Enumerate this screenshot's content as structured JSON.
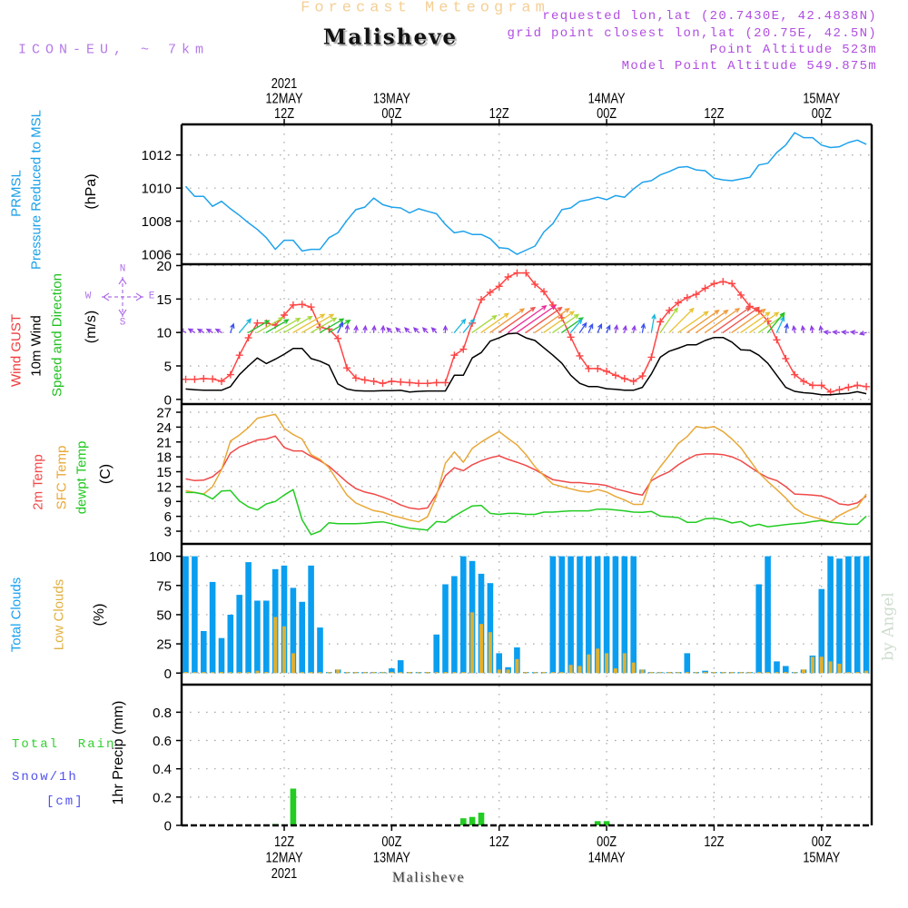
{
  "header": {
    "title": "Forecast Meteogram",
    "location": "Malisheve",
    "model": "ICON-EU, ~ 7km",
    "info": [
      "requested lon,lat (20.7430E, 42.4838N)",
      "grid point closest lon,lat (20.75E, 42.5N)",
      "Point Altitude 523m",
      "Model Point Altitude 549.875m"
    ]
  },
  "footer": {
    "location": "Malisheve",
    "credit": "by Angel"
  },
  "compass": {
    "north": "N",
    "south": "S",
    "east": "E",
    "west": "W",
    "color": "#b070e8"
  },
  "wind_arrow_colormap": [
    {
      "max": 1.6,
      "color": "#8e3ee6"
    },
    {
      "max": 2.5,
      "color": "#3a52f0"
    },
    {
      "max": 4.0,
      "color": "#1ab6dc"
    },
    {
      "max": 6.0,
      "color": "#22c02a"
    },
    {
      "max": 7.0,
      "color": "#a6d83a"
    },
    {
      "max": 8.0,
      "color": "#e8c232"
    },
    {
      "max": 9.0,
      "color": "#f09a3a"
    },
    {
      "max": 9.5,
      "color": "#f0504a"
    },
    {
      "max": 99,
      "color": "#ee2a96"
    }
  ],
  "time_axis": {
    "unit": "hours since 2021-05-12 00Z",
    "xlim": [
      0.54,
      77.6
    ],
    "hours": [
      1,
      2,
      3,
      4,
      5,
      6,
      7,
      8,
      9,
      10,
      11,
      12,
      13,
      14,
      15,
      16,
      17,
      18,
      19,
      20,
      21,
      22,
      23,
      24,
      25,
      26,
      27,
      28,
      29,
      30,
      31,
      32,
      33,
      34,
      35,
      36,
      37,
      38,
      39,
      40,
      41,
      42,
      43,
      44,
      45,
      46,
      47,
      48,
      49,
      50,
      51,
      52,
      53,
      54,
      55,
      56,
      57,
      58,
      59,
      60,
      61,
      62,
      63,
      64,
      65,
      66,
      67,
      68,
      69,
      70,
      71,
      72,
      73,
      74,
      75,
      76,
      77
    ],
    "ticks": [
      {
        "hour": 12,
        "top": [
          "2021",
          "12MAY",
          "12Z"
        ],
        "bottom": [
          "12Z",
          "12MAY",
          "2021"
        ]
      },
      {
        "hour": 24,
        "top": [
          "13MAY",
          "00Z"
        ],
        "bottom": [
          "00Z",
          "13MAY"
        ]
      },
      {
        "hour": 36,
        "top": [
          "12Z"
        ],
        "bottom": [
          "12Z"
        ]
      },
      {
        "hour": 48,
        "top": [
          "14MAY",
          "00Z"
        ],
        "bottom": [
          "00Z",
          "14MAY"
        ]
      },
      {
        "hour": 60,
        "top": [
          "12Z"
        ],
        "bottom": [
          "12Z"
        ]
      },
      {
        "hour": 72,
        "top": [
          "15MAY",
          "00Z"
        ],
        "bottom": [
          "00Z",
          "15MAY"
        ]
      }
    ]
  },
  "chart_data": [
    {
      "id": "pressure",
      "type": "line",
      "ylabel": "(hPa)",
      "ylim": [
        1005.4,
        1013.85
      ],
      "yticks": [
        1006,
        1008,
        1010,
        1012
      ],
      "grid": true,
      "labels": [
        {
          "text": "PRMSL",
          "color": "#1aa0e8"
        },
        {
          "text": "Pressure Reduced to MSL",
          "color": "#1aa0e8"
        }
      ],
      "series": [
        {
          "name": "PRMSL",
          "color": "#1ea2ec",
          "values": [
            1010.1,
            1009.5,
            1009.5,
            1008.9,
            1009.2,
            1008.75,
            1008.35,
            1007.9,
            1007.5,
            1007.0,
            1006.3,
            1006.85,
            1006.85,
            1006.2,
            1006.3,
            1006.3,
            1007.0,
            1007.3,
            1008.05,
            1008.7,
            1008.85,
            1009.4,
            1009.0,
            1008.85,
            1008.8,
            1008.5,
            1008.75,
            1008.6,
            1008.45,
            1007.8,
            1007.3,
            1007.4,
            1007.2,
            1007.2,
            1006.95,
            1006.4,
            1006.35,
            1006.0,
            1006.25,
            1006.5,
            1007.35,
            1007.85,
            1008.7,
            1008.8,
            1009.2,
            1009.3,
            1009.45,
            1009.3,
            1009.55,
            1009.45,
            1009.95,
            1010.35,
            1010.45,
            1010.8,
            1011.0,
            1011.25,
            1011.3,
            1011.1,
            1011.05,
            1010.6,
            1010.5,
            1010.45,
            1010.55,
            1010.65,
            1011.4,
            1011.5,
            1012.15,
            1012.6,
            1013.35,
            1013.05,
            1013.05,
            1012.6,
            1012.45,
            1012.5,
            1012.75,
            1012.9,
            1012.65
          ]
        }
      ]
    },
    {
      "id": "wind",
      "type": "line",
      "ylabel": "(m/s)",
      "ylim": [
        -0.7,
        20.2
      ],
      "yticks": [
        0,
        5,
        10,
        15,
        20
      ],
      "grid": true,
      "labels": [
        {
          "text": "Wind GUST",
          "color": "#f03c3c"
        },
        {
          "text": "10m Wind",
          "color": "#000000"
        },
        {
          "text": "Speed and Direction",
          "color": "#1fc01f"
        }
      ],
      "series": [
        {
          "name": "Wind GUST",
          "color": "#ff4444",
          "marker": "+",
          "values": [
            3.0,
            3.0,
            3.1,
            3.05,
            2.7,
            3.7,
            6.6,
            9.2,
            11.4,
            11.4,
            11.1,
            12.6,
            14.1,
            14.2,
            13.8,
            10.8,
            10.5,
            9.1,
            4.7,
            3.2,
            2.9,
            2.7,
            2.4,
            2.7,
            2.6,
            2.5,
            2.4,
            2.4,
            2.5,
            2.5,
            6.6,
            7.5,
            11.4,
            14.9,
            16.0,
            16.9,
            18.3,
            18.9,
            18.9,
            17.2,
            16.1,
            14.1,
            12.2,
            9.3,
            6.5,
            4.6,
            4.6,
            4.2,
            3.6,
            3.1,
            2.7,
            3.5,
            6.3,
            11.6,
            13.3,
            14.45,
            15.2,
            15.7,
            16.6,
            17.3,
            17.6,
            17.3,
            15.6,
            13.9,
            13.2,
            11.7,
            8.9,
            6.1,
            3.7,
            2.7,
            2.1,
            2.1,
            1.1,
            1.45,
            1.8,
            2.1,
            1.9
          ]
        },
        {
          "name": "10m Wind",
          "color": "#000000",
          "values": [
            1.55,
            1.45,
            1.36,
            1.36,
            1.36,
            1.9,
            3.7,
            5.0,
            6.2,
            5.35,
            6.0,
            6.75,
            7.6,
            7.6,
            6.1,
            5.7,
            5.1,
            2.3,
            1.55,
            1.3,
            1.25,
            1.25,
            1.3,
            1.3,
            1.35,
            1.1,
            1.2,
            1.25,
            1.25,
            1.25,
            3.6,
            3.6,
            6.2,
            7.0,
            8.7,
            9.2,
            9.8,
            9.9,
            9.2,
            8.8,
            7.7,
            6.6,
            5.4,
            3.6,
            2.4,
            1.9,
            1.9,
            1.6,
            1.5,
            1.36,
            1.36,
            1.8,
            3.8,
            6.3,
            7.2,
            7.65,
            8.15,
            8.15,
            8.8,
            9.25,
            9.25,
            8.55,
            7.4,
            7.35,
            6.6,
            5.4,
            3.6,
            1.8,
            1.2,
            1.0,
            0.9,
            0.7,
            0.7,
            0.8,
            0.9,
            1.15,
            0.85
          ]
        }
      ],
      "arrows": {
        "level": 10,
        "speed_series": "10m Wind",
        "direction_to_deg": [
          300,
          300,
          300,
          300,
          300,
          20,
          40,
          60,
          60,
          60,
          60,
          60,
          60,
          60,
          60,
          60,
          60,
          25,
          5,
          5,
          5,
          5,
          5,
          315,
          315,
          315,
          315,
          315,
          315,
          0,
          40,
          40,
          55,
          55,
          55,
          55,
          55,
          55,
          55,
          55,
          55,
          55,
          55,
          40,
          35,
          25,
          25,
          25,
          10,
          10,
          10,
          10,
          10,
          35,
          45,
          55,
          55,
          55,
          55,
          55,
          55,
          55,
          55,
          55,
          55,
          40,
          25,
          10,
          350,
          350,
          350,
          350,
          275,
          275,
          275,
          275,
          255
        ]
      }
    },
    {
      "id": "temp",
      "type": "line",
      "ylabel": "(C)",
      "ylim": [
        0.44,
        28.65
      ],
      "yticks": [
        3,
        6,
        9,
        12,
        15,
        18,
        21,
        24,
        27
      ],
      "grid": true,
      "labels": [
        {
          "text": "2m Temp",
          "color": "#f04848"
        },
        {
          "text": "SFC Temp",
          "color": "#e8a838"
        },
        {
          "text": "dewpt Temp",
          "color": "#1fc81f"
        }
      ],
      "series": [
        {
          "name": "2m Temp",
          "color": "#f04848",
          "values": [
            13.56,
            13.2,
            13.3,
            14.0,
            15.5,
            18.75,
            20.0,
            20.7,
            21.4,
            21.6,
            22.2,
            19.9,
            19.2,
            19.2,
            18.1,
            17.2,
            16.1,
            14.5,
            12.9,
            11.6,
            10.9,
            10.5,
            9.9,
            9.2,
            8.3,
            7.7,
            7.45,
            7.7,
            10.5,
            14.2,
            15.8,
            15.2,
            16.4,
            17.2,
            17.8,
            18.2,
            17.5,
            16.9,
            16.25,
            15.4,
            14.4,
            13.4,
            13.1,
            12.8,
            12.8,
            12.6,
            12.5,
            12.2,
            11.55,
            11.1,
            10.6,
            10.3,
            13.2,
            14.2,
            15.0,
            16.4,
            17.5,
            18.4,
            18.6,
            18.6,
            18.45,
            18.0,
            17.2,
            16.0,
            14.8,
            13.8,
            13.2,
            12.0,
            10.5,
            10.4,
            10.3,
            10.1,
            9.5,
            8.5,
            8.3,
            8.7,
            10.1
          ]
        },
        {
          "name": "SFC Temp",
          "color": "#e8a838",
          "values": [
            11.2,
            10.8,
            10.5,
            12.0,
            15.4,
            21.2,
            22.4,
            23.9,
            25.8,
            26.2,
            26.6,
            23.75,
            22.5,
            21.6,
            18.45,
            17.5,
            15.8,
            13.0,
            10.3,
            8.7,
            7.9,
            7.15,
            6.85,
            6.2,
            5.75,
            5.26,
            4.9,
            5.9,
            10.1,
            16.7,
            19.0,
            16.9,
            19.7,
            21.0,
            22.1,
            23.1,
            21.7,
            20.4,
            18.45,
            16.0,
            14.2,
            12.5,
            12.0,
            11.55,
            11.1,
            10.9,
            11.4,
            10.9,
            10.0,
            9.3,
            8.4,
            8.4,
            13.6,
            16.0,
            18.3,
            20.7,
            22.1,
            24.1,
            23.8,
            24.1,
            23.1,
            21.6,
            19.8,
            17.3,
            14.8,
            13.0,
            11.4,
            9.7,
            7.7,
            6.5,
            5.9,
            5.4,
            4.9,
            6.2,
            7.1,
            7.9,
            10.5
          ]
        },
        {
          "name": "dewpt Temp",
          "color": "#22cc22",
          "values": [
            10.8,
            10.8,
            10.45,
            9.5,
            11.1,
            11.2,
            9.1,
            7.9,
            7.3,
            8.5,
            9.0,
            10.3,
            11.4,
            5.3,
            2.3,
            3.0,
            4.7,
            4.5,
            4.5,
            4.5,
            4.6,
            4.8,
            4.9,
            4.5,
            4.0,
            3.6,
            3.4,
            3.25,
            4.95,
            4.8,
            6.05,
            7.1,
            8.1,
            8.2,
            6.6,
            6.4,
            6.6,
            6.6,
            6.4,
            6.4,
            6.85,
            6.85,
            7.0,
            7.1,
            7.1,
            7.1,
            7.45,
            7.45,
            7.3,
            7.1,
            6.85,
            6.8,
            7.0,
            6.05,
            5.9,
            5.75,
            4.8,
            4.8,
            5.5,
            5.6,
            5.3,
            4.65,
            4.95,
            4.0,
            4.4,
            3.9,
            4.1,
            4.35,
            4.5,
            4.65,
            4.95,
            5.15,
            4.8,
            4.65,
            4.4,
            4.4,
            6.05
          ]
        }
      ]
    },
    {
      "id": "clouds",
      "type": "bar",
      "ylabel": "(%)",
      "ylim": [
        -9.9,
        110.6
      ],
      "yticks": [
        0,
        25,
        50,
        75,
        100
      ],
      "grid": true,
      "labels": [
        {
          "text": "Total Clouds",
          "color": "#18a0f0"
        },
        {
          "text": "Low Clouds",
          "color": "#e0b040"
        }
      ],
      "series": [
        {
          "name": "Total Clouds",
          "color": "#0a9ef0",
          "values": [
            100,
            100,
            36,
            78,
            30,
            50,
            67,
            95,
            62,
            62,
            89,
            92,
            73,
            61,
            92,
            39,
            0,
            3,
            0,
            0,
            0,
            0,
            0,
            4,
            11,
            0,
            0,
            0,
            33,
            76,
            83,
            100,
            96,
            85,
            77,
            17,
            5,
            22,
            0,
            0,
            0,
            100,
            100,
            100,
            100,
            100,
            100,
            100,
            100,
            100,
            100,
            3,
            0,
            0,
            0,
            0,
            17,
            0,
            2,
            0,
            0,
            0,
            0,
            0,
            76,
            100,
            10,
            6,
            0,
            3,
            15,
            72,
            100,
            98,
            100,
            100,
            100
          ]
        },
        {
          "name": "Low Clouds",
          "color": "#e0b030",
          "values": [
            0,
            0,
            0,
            0,
            0,
            0,
            0,
            0,
            2,
            1,
            48,
            40,
            17,
            0,
            0,
            0,
            0,
            3,
            0,
            0,
            0,
            0,
            0,
            0,
            0,
            0,
            0,
            0,
            0,
            0,
            0,
            0,
            52,
            42,
            35,
            3,
            3,
            12,
            0,
            0,
            0,
            0,
            0,
            7,
            6,
            16,
            21,
            17,
            4,
            17,
            9,
            3,
            0,
            0,
            0,
            0,
            0,
            0,
            0,
            0,
            0,
            0,
            0,
            0,
            0,
            0,
            0,
            0,
            0,
            3,
            14,
            14,
            10,
            8,
            0,
            0,
            2
          ]
        }
      ]
    },
    {
      "id": "precip",
      "type": "bar",
      "ylabel": "1hr Precip (mm)",
      "ylim": [
        0,
        0.995
      ],
      "yticks": [
        0,
        0.2,
        0.4,
        0.6,
        0.8
      ],
      "grid": true,
      "labels": [
        {
          "text": "Total  Rain",
          "color": "#30d030"
        },
        {
          "text": "Snow/1h",
          "color": "#5050f0"
        },
        {
          "text": "[cm]",
          "color": "#5050f0"
        }
      ],
      "series": [
        {
          "name": "Total Rain",
          "color": "#22cc22",
          "bars": [
            {
              "hour": 11,
              "value": 0.01
            },
            {
              "hour": 13,
              "value": 0.26
            },
            {
              "hour": 32,
              "value": 0.05
            },
            {
              "hour": 33,
              "value": 0.06
            },
            {
              "hour": 34,
              "value": 0.09
            },
            {
              "hour": 47,
              "value": 0.03
            },
            {
              "hour": 48,
              "value": 0.03
            }
          ]
        }
      ]
    }
  ]
}
